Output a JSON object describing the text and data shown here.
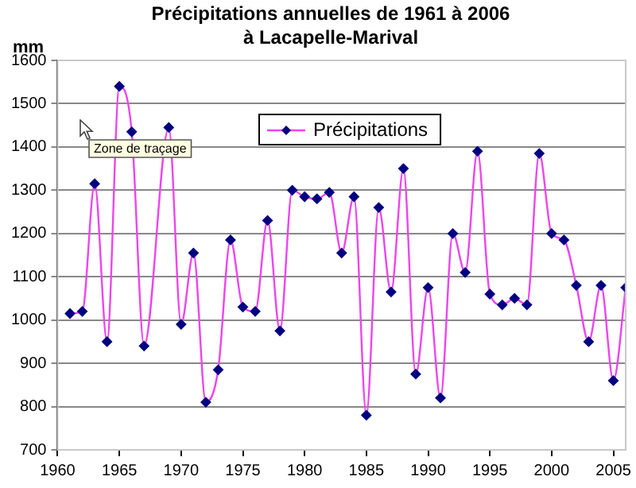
{
  "chart_data": {
    "type": "line",
    "title": "Précipitations annuelles de 1961 à 2006\nà Lacapelle-Marival",
    "ylabel": "mm",
    "x": [
      1961,
      1962,
      1963,
      1964,
      1965,
      1966,
      1967,
      1968,
      1969,
      1970,
      1971,
      1972,
      1973,
      1974,
      1975,
      1976,
      1977,
      1978,
      1979,
      1980,
      1981,
      1982,
      1983,
      1984,
      1985,
      1986,
      1987,
      1988,
      1989,
      1990,
      1991,
      1992,
      1993,
      1994,
      1995,
      1996,
      1997,
      1998,
      1999,
      2000,
      2001,
      2002,
      2003,
      2004,
      2005,
      2006
    ],
    "series": [
      {
        "name": "Précipitations",
        "color": "#ee44ee",
        "values": [
          1015,
          1020,
          1315,
          950,
          1540,
          1435,
          940,
          null,
          1445,
          990,
          1155,
          810,
          885,
          1185,
          1030,
          1020,
          1230,
          975,
          1300,
          1285,
          1280,
          1295,
          1155,
          1285,
          780,
          1260,
          1065,
          1350,
          875,
          1075,
          820,
          1200,
          1110,
          1390,
          1060,
          1035,
          1050,
          1035,
          1385,
          1200,
          1185,
          1080,
          950,
          1080,
          860,
          1075
        ]
      }
    ],
    "xlim": [
      1960,
      2006
    ],
    "xticks": [
      1960,
      1965,
      1970,
      1975,
      1980,
      1985,
      1990,
      1995,
      2000,
      2005
    ],
    "ylim": [
      700,
      1600
    ],
    "yticks": [
      700,
      800,
      900,
      1000,
      1100,
      1200,
      1300,
      1400,
      1500,
      1600
    ],
    "grid": "y",
    "legend": "top",
    "marker": "diamond",
    "line_style": "solid",
    "annotations": [
      "Zone de traçage"
    ]
  }
}
